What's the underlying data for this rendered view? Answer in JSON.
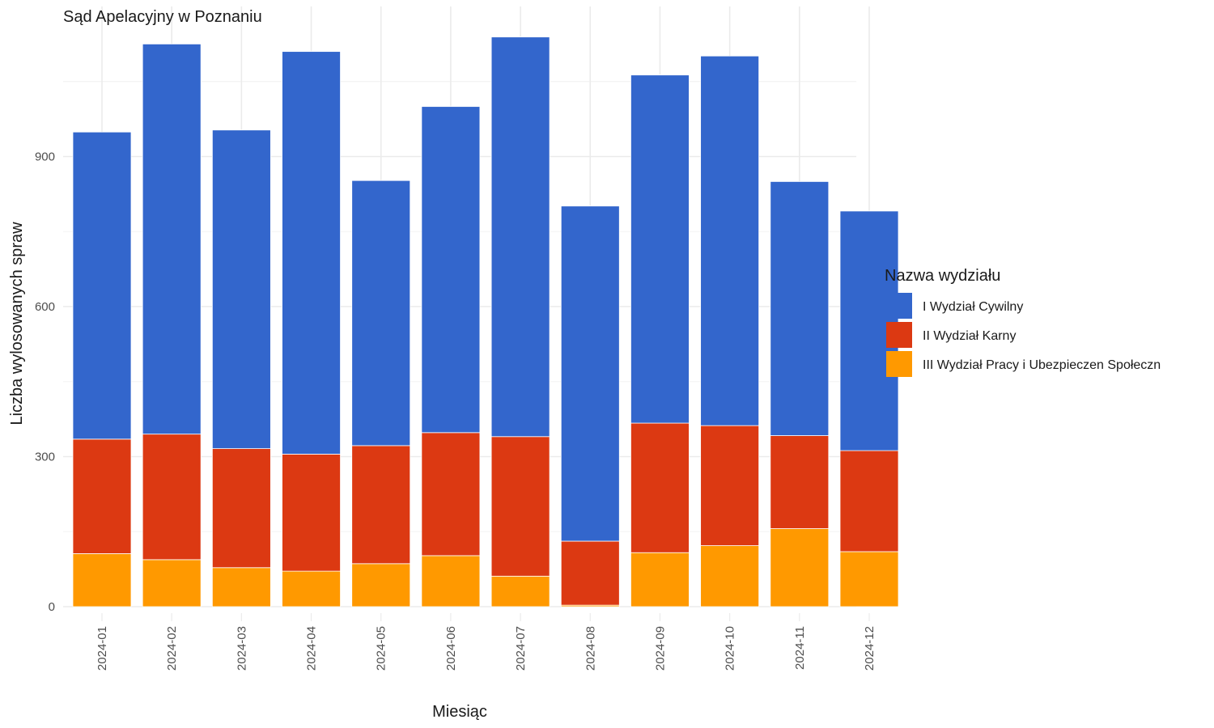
{
  "chart_data": {
    "type": "bar",
    "stacked": true,
    "title": "Sąd Apelacyjny w Poznaniu",
    "xlabel": "Miesiąc",
    "ylabel": "Liczba wylosowanych spraw",
    "ylim": [
      0,
      1200
    ],
    "yticks": [
      0,
      300,
      600,
      900
    ],
    "grid": true,
    "legend": {
      "title": "Nazwa wydziału",
      "position": "right"
    },
    "categories": [
      "2024-01",
      "2024-02",
      "2024-03",
      "2024-04",
      "2024-05",
      "2024-06",
      "2024-07",
      "2024-08",
      "2024-09",
      "2024-10",
      "2024-11",
      "2024-12"
    ],
    "series": [
      {
        "name": "I Wydział Cywilny",
        "color": "#3366CC",
        "values": [
          614,
          780,
          637,
          805,
          530,
          652,
          799,
          670,
          696,
          739,
          508,
          479
        ]
      },
      {
        "name": "II Wydział Karny",
        "color": "#DC3912",
        "values": [
          229,
          251,
          238,
          234,
          236,
          246,
          279,
          128,
          259,
          240,
          186,
          202
        ]
      },
      {
        "name": "III Wydział Pracy i Ubezpieczen Społeczn",
        "color": "#FF9900",
        "values": [
          106,
          94,
          78,
          71,
          86,
          102,
          61,
          3,
          108,
          122,
          156,
          110
        ]
      }
    ]
  }
}
